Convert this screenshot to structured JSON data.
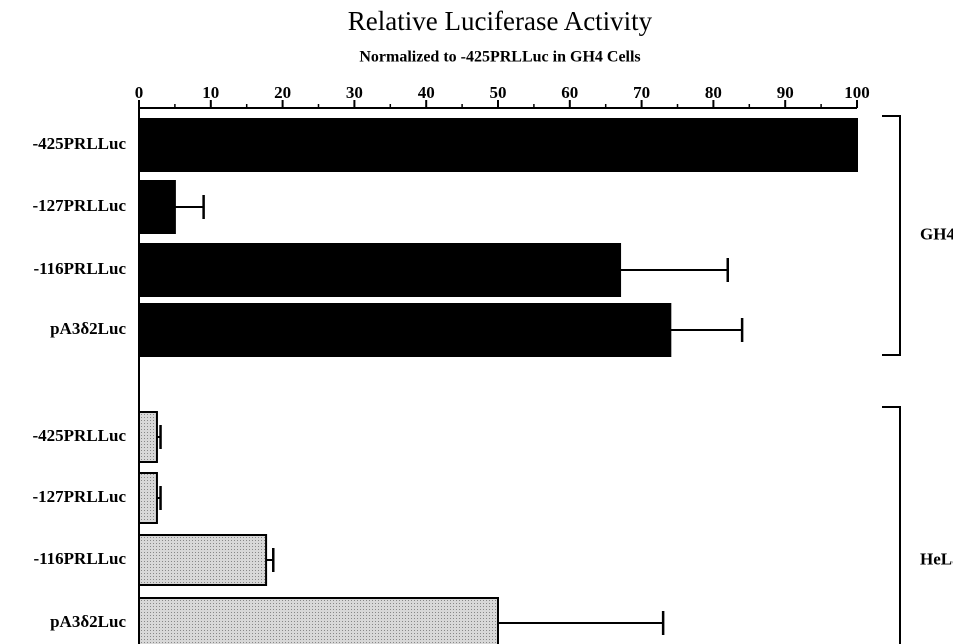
{
  "chart_data": {
    "type": "bar",
    "orientation": "horizontal",
    "title": "Relative Luciferase Activity",
    "subtitle": "Normalized to -425PRLLuc in GH4 Cells",
    "xlim": [
      0,
      100
    ],
    "xticks": [
      0,
      10,
      20,
      30,
      40,
      50,
      60,
      70,
      80,
      90,
      100
    ],
    "groups": [
      {
        "name": "GH4",
        "color": "#000000",
        "categories": [
          "-425PRLLuc",
          "-127PRLLuc",
          "-116PRLLuc",
          "pA3δ2Luc"
        ],
        "values": [
          100,
          5,
          67,
          74
        ],
        "errors": [
          0,
          4,
          15,
          10
        ]
      },
      {
        "name": "HeLa",
        "color": "#cfcfcf",
        "categories": [
          "-425PRLLuc",
          "-127PRLLuc",
          "-116PRLLuc",
          "pA3δ2Luc"
        ],
        "values": [
          2.5,
          2.5,
          17.7,
          50
        ],
        "errors": [
          0.5,
          0.5,
          1,
          23
        ]
      }
    ]
  }
}
